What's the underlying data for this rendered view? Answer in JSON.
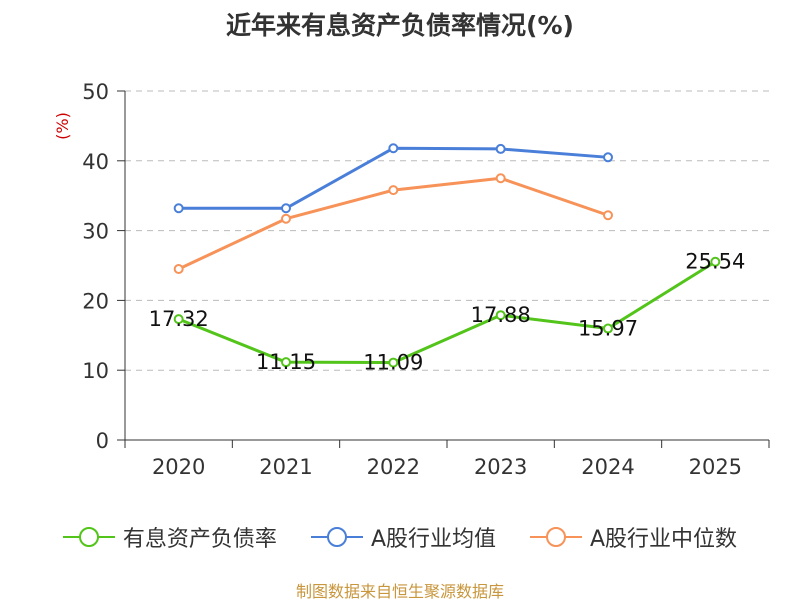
{
  "chart_data": {
    "type": "line",
    "title": "近年来有息资产负债率情况(%)",
    "ylabel": "(%)",
    "xlabel": "",
    "categories": [
      "2020",
      "2021",
      "2022",
      "2023",
      "2024",
      "2025"
    ],
    "ylim": [
      0,
      50
    ],
    "yticks": [
      0,
      10,
      20,
      30,
      40,
      50
    ],
    "grid": true,
    "legend_position": "bottom",
    "series": [
      {
        "name": "有息资产负债率",
        "color": "#52c41a",
        "values": [
          17.32,
          11.15,
          11.09,
          17.88,
          15.97,
          25.54
        ],
        "labels": [
          "17.32",
          "11.15",
          "11.09",
          "17.88",
          "15.97",
          "25.54"
        ]
      },
      {
        "name": "A股行业均值",
        "color": "#4a7fd9",
        "values": [
          33.2,
          33.2,
          41.8,
          41.7,
          40.5,
          null
        ]
      },
      {
        "name": "A股行业中位数",
        "color": "#f79258",
        "values": [
          24.5,
          31.7,
          35.8,
          37.5,
          32.2,
          null
        ]
      }
    ],
    "source": "制图数据来自恒生聚源数据库"
  }
}
